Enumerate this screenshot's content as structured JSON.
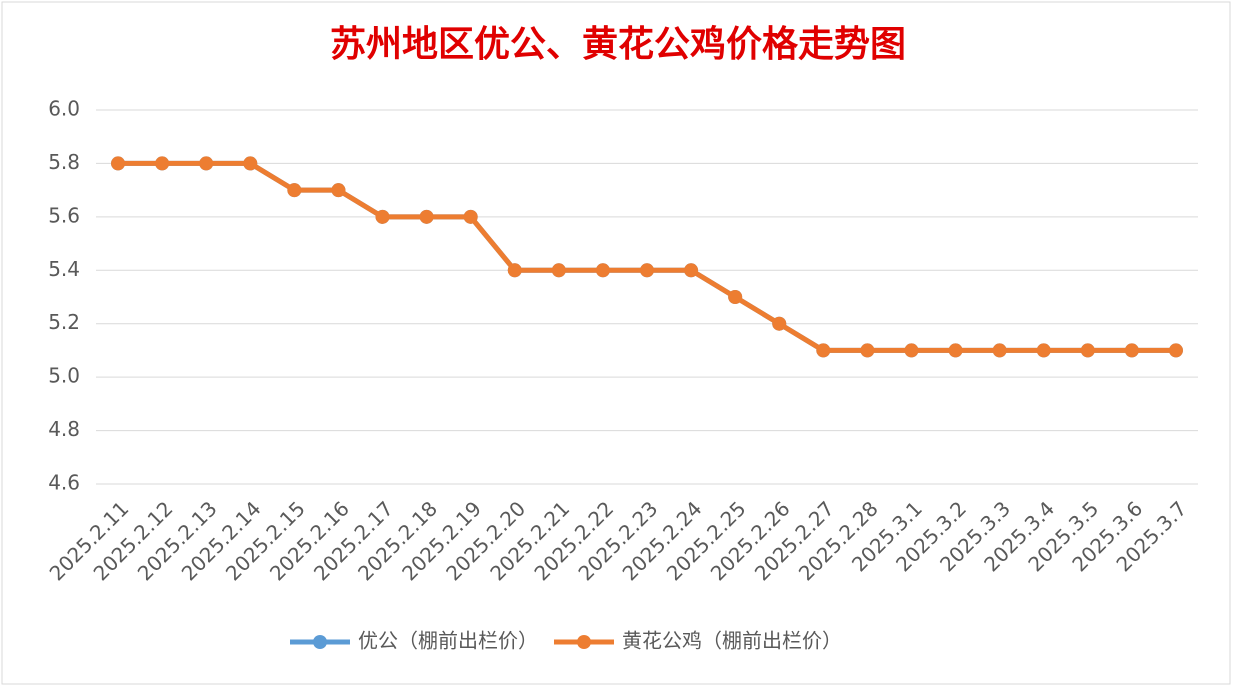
{
  "chart_data": {
    "type": "line",
    "title": "苏州地区优公、黄花公鸡价格走势图",
    "categories": [
      "2025.2.11",
      "2025.2.12",
      "2025.2.13",
      "2025.2.14",
      "2025.2.15",
      "2025.2.16",
      "2025.2.17",
      "2025.2.18",
      "2025.2.19",
      "2025.2.20",
      "2025.2.21",
      "2025.2.22",
      "2025.2.23",
      "2025.2.24",
      "2025.2.25",
      "2025.2.26",
      "2025.2.27",
      "2025.2.28",
      "2025.3.1",
      "2025.3.2",
      "2025.3.3",
      "2025.3.4",
      "2025.3.5",
      "2025.3.6",
      "2025.3.7"
    ],
    "series": [
      {
        "name": "优公（棚前出栏价）",
        "color": "#5b9bd5",
        "values": [
          5.8,
          5.8,
          5.8,
          5.8,
          5.7,
          5.7,
          5.6,
          5.6,
          5.6,
          5.4,
          5.4,
          5.4,
          5.4,
          5.4,
          5.3,
          5.2,
          5.1,
          5.1,
          5.1,
          5.1,
          5.1,
          5.1,
          5.1,
          5.1,
          5.1
        ]
      },
      {
        "name": "黄花公鸡（棚前出栏价）",
        "color": "#ed7d31",
        "values": [
          5.8,
          5.8,
          5.8,
          5.8,
          5.7,
          5.7,
          5.6,
          5.6,
          5.6,
          5.4,
          5.4,
          5.4,
          5.4,
          5.4,
          5.3,
          5.2,
          5.1,
          5.1,
          5.1,
          5.1,
          5.1,
          5.1,
          5.1,
          5.1,
          5.1
        ]
      }
    ],
    "ylim": [
      4.6,
      6
    ],
    "yticks": [
      4.6,
      4.8,
      {
        "value": 5,
        "label": "5.0"
      },
      5.2,
      5.4,
      5.6,
      5.8,
      {
        "value": 6,
        "label": "6.0"
      }
    ],
    "grid": true,
    "legend": "bottom"
  }
}
